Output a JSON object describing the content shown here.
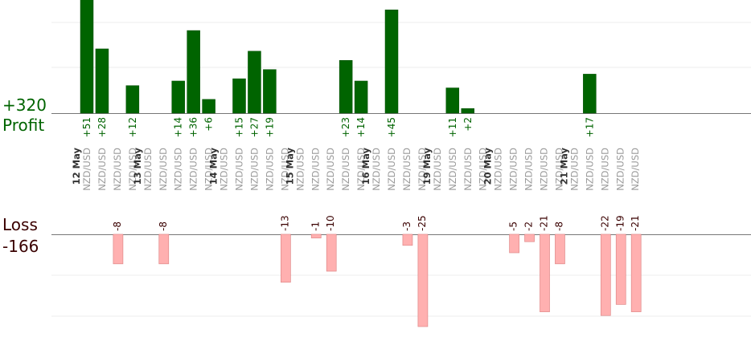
{
  "chart_data": {
    "type": "bar",
    "profit": {
      "total_label": "+320",
      "label": "Profit",
      "color": "#006400"
    },
    "loss": {
      "label": "Loss",
      "total_label": "-166",
      "color": "#ffb0b0"
    },
    "slots": [
      {
        "date": "12 May",
        "pair": "NZD/USD",
        "value": 51,
        "label": "+51"
      },
      {
        "date": "",
        "pair": "NZD/USD",
        "value": 28,
        "label": "+28"
      },
      {
        "date": "",
        "pair": "NZD/USD",
        "value": -8,
        "label": "-8"
      },
      {
        "date": "",
        "pair": "NZD/USD",
        "value": 12,
        "label": "+12"
      },
      {
        "date": "13 May",
        "pair": "NZD/USD",
        "value": null,
        "label": ""
      },
      {
        "date": "",
        "pair": "NZD/USD",
        "value": -8,
        "label": "-8"
      },
      {
        "date": "",
        "pair": "NZD/USD",
        "value": 14,
        "label": "+14"
      },
      {
        "date": "",
        "pair": "NZD/USD",
        "value": 36,
        "label": "+36"
      },
      {
        "date": "",
        "pair": "NZD/USD",
        "value": 6,
        "label": "+6"
      },
      {
        "date": "14 May",
        "pair": "NZD/USD",
        "value": null,
        "label": ""
      },
      {
        "date": "",
        "pair": "NZD/USD",
        "value": 15,
        "label": "+15"
      },
      {
        "date": "",
        "pair": "NZD/USD",
        "value": 27,
        "label": "+27"
      },
      {
        "date": "",
        "pair": "NZD/USD",
        "value": 19,
        "label": "+19"
      },
      {
        "date": "",
        "pair": "NZD/USD",
        "value": -13,
        "label": "-13"
      },
      {
        "date": "15 May",
        "pair": "NZD/USD",
        "value": null,
        "label": ""
      },
      {
        "date": "",
        "pair": "NZD/USD",
        "value": -1,
        "label": "-1"
      },
      {
        "date": "",
        "pair": "NZD/USD",
        "value": -10,
        "label": "-10"
      },
      {
        "date": "",
        "pair": "NZD/USD",
        "value": 23,
        "label": "+23"
      },
      {
        "date": "",
        "pair": "NZD/USD",
        "value": 14,
        "label": "+14"
      },
      {
        "date": "16 May",
        "pair": "NZD/USD",
        "value": null,
        "label": ""
      },
      {
        "date": "",
        "pair": "NZD/USD",
        "value": 45,
        "label": "+45"
      },
      {
        "date": "",
        "pair": "NZD/USD",
        "value": -3,
        "label": "-3"
      },
      {
        "date": "",
        "pair": "NZD/USD",
        "value": -25,
        "label": "-25"
      },
      {
        "date": "19 May",
        "pair": "NZD/USD",
        "value": null,
        "label": ""
      },
      {
        "date": "",
        "pair": "NZD/USD",
        "value": 11,
        "label": "+11"
      },
      {
        "date": "",
        "pair": "NZD/USD",
        "value": 2,
        "label": "+2"
      },
      {
        "date": "",
        "pair": "NZD/USD",
        "value": null,
        "label": ""
      },
      {
        "date": "20 May",
        "pair": "NZD/USD",
        "value": null,
        "label": ""
      },
      {
        "date": "",
        "pair": "NZD/USD",
        "value": -5,
        "label": "-5"
      },
      {
        "date": "",
        "pair": "NZD/USD",
        "value": -2,
        "label": "-2"
      },
      {
        "date": "",
        "pair": "NZD/USD",
        "value": -21,
        "label": "-21"
      },
      {
        "date": "",
        "pair": "NZD/USD",
        "value": -8,
        "label": "-8"
      },
      {
        "date": "21 May",
        "pair": "NZD/USD",
        "value": null,
        "label": ""
      },
      {
        "date": "",
        "pair": "NZD/USD",
        "value": 17,
        "label": "+17"
      },
      {
        "date": "",
        "pair": "NZD/USD",
        "value": -22,
        "label": "-22"
      },
      {
        "date": "",
        "pair": "NZD/USD",
        "value": -19,
        "label": "-19"
      },
      {
        "date": "",
        "pair": "NZD/USD",
        "value": -21,
        "label": "-21"
      }
    ],
    "grid": true
  }
}
